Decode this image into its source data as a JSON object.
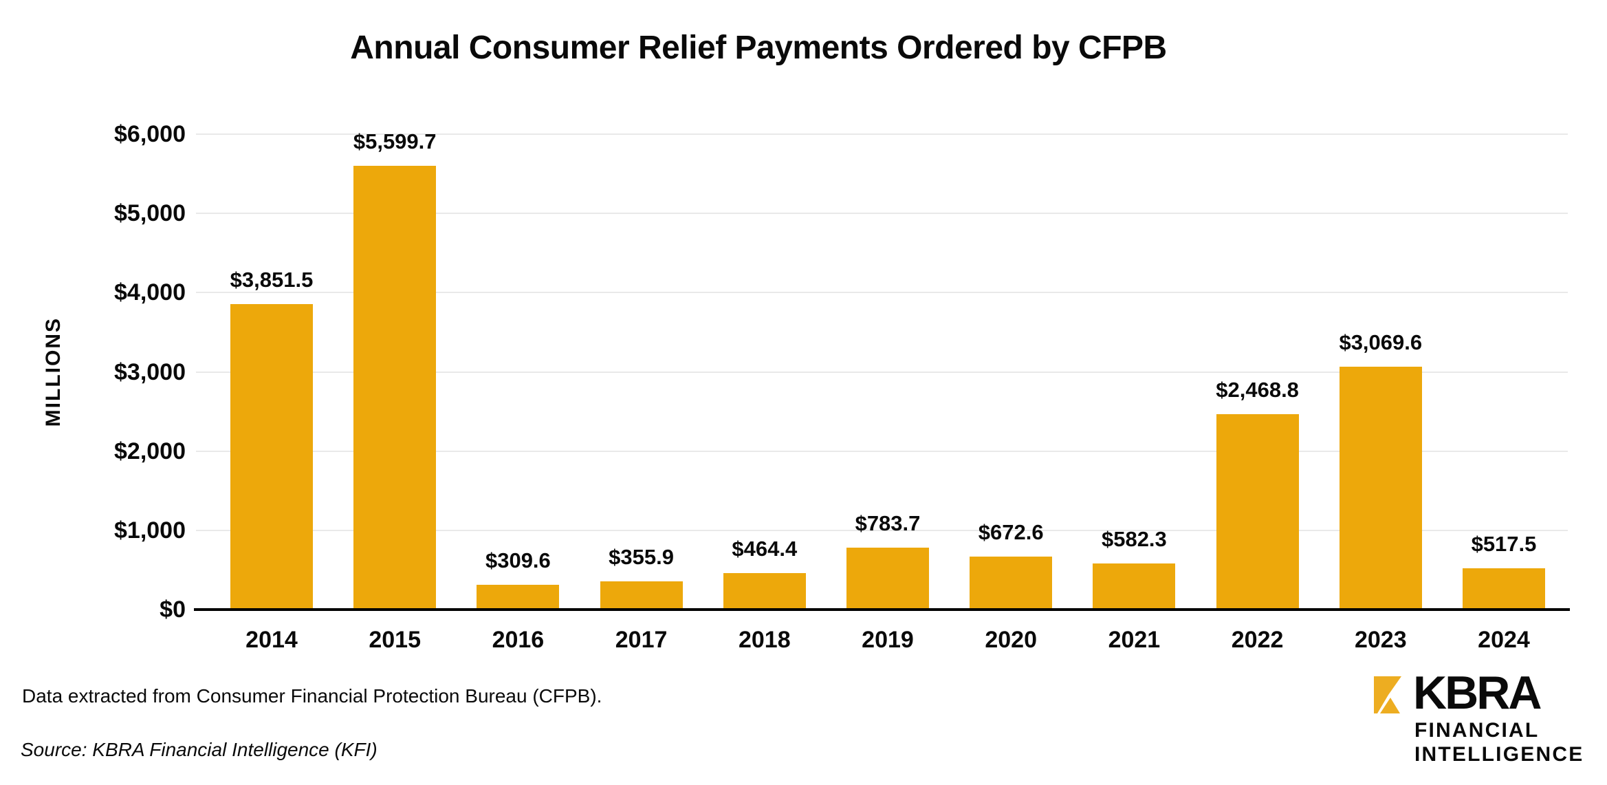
{
  "chart_data": {
    "type": "bar",
    "title": "Annual Consumer Relief Payments Ordered by CFPB",
    "ylabel": "MILLIONS",
    "xlabel": "",
    "categories": [
      "2014",
      "2015",
      "2016",
      "2017",
      "2018",
      "2019",
      "2020",
      "2021",
      "2022",
      "2023",
      "2024"
    ],
    "values": [
      3851.5,
      5599.7,
      309.6,
      355.9,
      464.4,
      783.7,
      672.6,
      582.3,
      2468.8,
      3069.6,
      517.5
    ],
    "value_labels": [
      "$3,851.5",
      "$5,599.7",
      "$309.6",
      "$355.9",
      "$464.4",
      "$783.7",
      "$672.6",
      "$582.3",
      "$2,468.8",
      "$3,069.6",
      "$517.5"
    ],
    "ylim": [
      0,
      6000
    ],
    "yticks": [
      {
        "value": 0,
        "label": "$0"
      },
      {
        "value": 1000,
        "label": "$1,000"
      },
      {
        "value": 2000,
        "label": "$2,000"
      },
      {
        "value": 3000,
        "label": "$3,000"
      },
      {
        "value": 4000,
        "label": "$4,000"
      },
      {
        "value": 5000,
        "label": "$5,000"
      },
      {
        "value": 6000,
        "label": "$6,000"
      }
    ],
    "grid": true,
    "legend": false,
    "bar_color": "#EDA80B"
  },
  "footer": {
    "note": "Data extracted from Consumer Financial Protection Bureau (CFPB).",
    "source": "Source: KBRA Financial Intelligence (KFI)"
  },
  "logo": {
    "name": "KBRA",
    "line1": "FINANCIAL",
    "line2": "INTELLIGENCE",
    "icon": "kbra-mark",
    "gold": "#EDAD21"
  },
  "colors": {
    "bar": "#EDA80B",
    "axis": "#000000",
    "gridline": "#E9E9E9",
    "text": "#0A0A0A",
    "background": "#FFFFFF"
  }
}
